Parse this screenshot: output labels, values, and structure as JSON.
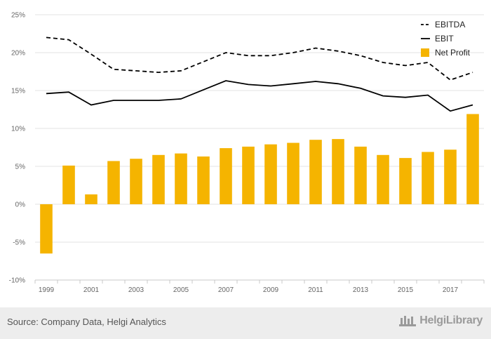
{
  "chart_data": {
    "type": "bar+line",
    "x": [
      "1999",
      "2000",
      "2001",
      "2002",
      "2003",
      "2004",
      "2005",
      "2006",
      "2007",
      "2008",
      "2009",
      "2010",
      "2011",
      "2012",
      "2013",
      "2014",
      "2015",
      "2016",
      "2017",
      "2018"
    ],
    "xtick_labels": [
      "1999",
      "2001",
      "2003",
      "2005",
      "2007",
      "2009",
      "2011",
      "2013",
      "2015",
      "2017"
    ],
    "ytick_labels": [
      "25%",
      "20%",
      "15%",
      "10%",
      "5%",
      "0%",
      "-5%",
      "-10%"
    ],
    "ylim": [
      -10,
      25
    ],
    "grid": true,
    "legend_position": "top-right",
    "series": [
      {
        "name": "EBITDA",
        "type": "line",
        "style": "dashed",
        "color": "#000000",
        "values": [
          22.0,
          21.7,
          19.8,
          17.8,
          17.6,
          17.4,
          17.6,
          18.8,
          20.0,
          19.6,
          19.6,
          20.0,
          20.6,
          20.2,
          19.6,
          18.7,
          18.3,
          18.7,
          16.4,
          17.4
        ]
      },
      {
        "name": "EBIT",
        "type": "line",
        "style": "solid",
        "color": "#000000",
        "values": [
          14.6,
          14.8,
          13.1,
          13.7,
          13.7,
          13.7,
          13.9,
          15.1,
          16.3,
          15.8,
          15.6,
          15.9,
          16.2,
          15.9,
          15.3,
          14.3,
          14.1,
          14.4,
          12.3,
          13.1
        ]
      },
      {
        "name": "Net Profit",
        "type": "bar",
        "color": "#f5b400",
        "values": [
          -6.5,
          5.1,
          1.3,
          5.7,
          6.0,
          6.5,
          6.7,
          6.3,
          7.4,
          7.6,
          7.9,
          8.1,
          8.5,
          8.6,
          7.6,
          6.5,
          6.1,
          6.9,
          7.2,
          11.9
        ]
      }
    ]
  },
  "footer": {
    "source": "Source: Company Data, Helgi Analytics",
    "logo": "HelgiLibrary"
  }
}
